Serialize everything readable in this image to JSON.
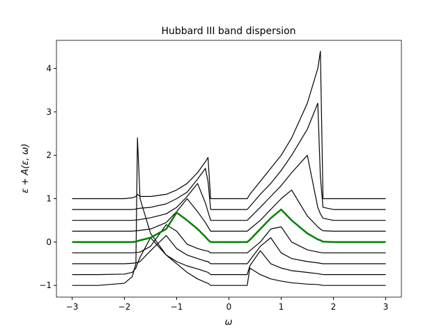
{
  "chart_data": {
    "type": "line",
    "title": "Hubbard III band dispersion",
    "xlabel": "ω",
    "ylabel": "ε + A(ε, ω)",
    "x": [
      -3,
      -2.5,
      -2,
      -1.85,
      -1.78,
      -1.75,
      -1.7,
      -1.5,
      -1.2,
      -1,
      -0.8,
      -0.6,
      -0.45,
      -0.4,
      -0.35,
      -0.2,
      0,
      0.2,
      0.35,
      0.4,
      0.6,
      0.8,
      1,
      1.2,
      1.5,
      1.7,
      1.75,
      1.8,
      2,
      2.5,
      3
    ],
    "series": [
      {
        "color": "#000000",
        "values": [
          -1,
          -1,
          -0.95,
          -0.8,
          -0.5,
          2.4,
          1.0,
          0.2,
          -0.3,
          -0.5,
          -0.7,
          -0.85,
          -0.93,
          -0.95,
          -1,
          -1,
          -1,
          -1,
          -1,
          -0.6,
          -0.75,
          -0.85,
          -0.9,
          -0.94,
          -0.97,
          -0.98,
          -0.99,
          -1,
          -1,
          -1,
          -1
        ]
      },
      {
        "color": "#000000",
        "values": [
          -0.75,
          -0.75,
          -0.74,
          -0.7,
          -0.6,
          -0.5,
          -0.35,
          0.1,
          -0.3,
          -0.45,
          -0.55,
          -0.62,
          -0.68,
          -0.7,
          -0.75,
          -0.75,
          -0.75,
          -0.75,
          -0.75,
          -0.55,
          -0.2,
          -0.5,
          -0.6,
          -0.66,
          -0.7,
          -0.73,
          -0.74,
          -0.75,
          -0.75,
          -0.75,
          -0.75
        ]
      },
      {
        "color": "#000000",
        "values": [
          -0.5,
          -0.5,
          -0.5,
          -0.49,
          -0.48,
          -0.47,
          -0.45,
          -0.2,
          0.15,
          -0.15,
          -0.3,
          -0.38,
          -0.44,
          -0.45,
          -0.5,
          -0.5,
          -0.5,
          -0.5,
          -0.5,
          -0.42,
          -0.1,
          0.1,
          -0.25,
          -0.38,
          -0.45,
          -0.48,
          -0.49,
          -0.5,
          -0.5,
          -0.5,
          -0.5
        ]
      },
      {
        "color": "#000000",
        "values": [
          -0.25,
          -0.25,
          -0.25,
          -0.25,
          -0.24,
          -0.24,
          -0.23,
          -0.1,
          0.4,
          0.25,
          -0.05,
          -0.15,
          -0.2,
          -0.21,
          -0.25,
          -0.25,
          -0.25,
          -0.25,
          -0.25,
          -0.2,
          0.0,
          0.3,
          0.35,
          0.0,
          -0.18,
          -0.23,
          -0.24,
          -0.25,
          -0.25,
          -0.25,
          -0.25
        ]
      },
      {
        "color": "#000000",
        "values": [
          0.25,
          0.25,
          0.25,
          0.25,
          0.26,
          0.26,
          0.27,
          0.3,
          0.45,
          0.7,
          1.0,
          0.7,
          0.45,
          0.35,
          0.25,
          0.25,
          0.25,
          0.25,
          0.25,
          0.3,
          0.5,
          0.75,
          1.0,
          1.2,
          0.6,
          0.35,
          0.3,
          0.26,
          0.25,
          0.25,
          0.25
        ]
      },
      {
        "color": "#000000",
        "values": [
          0.5,
          0.5,
          0.5,
          0.5,
          0.51,
          0.51,
          0.52,
          0.56,
          0.65,
          0.8,
          1.05,
          1.35,
          0.9,
          0.7,
          0.5,
          0.5,
          0.5,
          0.5,
          0.5,
          0.56,
          0.8,
          1.05,
          1.3,
          1.6,
          2.0,
          0.8,
          0.65,
          0.55,
          0.5,
          0.5,
          0.5
        ]
      },
      {
        "color": "#000000",
        "values": [
          0.75,
          0.75,
          0.75,
          0.75,
          0.76,
          0.77,
          0.78,
          0.8,
          0.88,
          1.0,
          1.15,
          1.45,
          1.7,
          1.4,
          0.75,
          0.75,
          0.75,
          0.75,
          0.75,
          0.82,
          1.1,
          1.35,
          1.65,
          2.0,
          2.6,
          3.2,
          1.5,
          0.8,
          0.75,
          0.75,
          0.75
        ]
      },
      {
        "color": "#000000",
        "values": [
          1,
          1,
          1,
          1.02,
          1.05,
          1.1,
          1.05,
          1.05,
          1.1,
          1.2,
          1.35,
          1.6,
          1.85,
          1.95,
          1.0,
          1,
          1,
          1,
          1,
          1.1,
          1.4,
          1.7,
          2.0,
          2.4,
          3.2,
          4.0,
          4.4,
          1.0,
          1,
          1,
          1
        ]
      },
      {
        "color": "#008000",
        "values": [
          0,
          0,
          0,
          0,
          0.01,
          0.02,
          0.04,
          0.1,
          0.3,
          0.68,
          0.5,
          0.3,
          0.12,
          0.05,
          0,
          0,
          0,
          0,
          0,
          0.05,
          0.3,
          0.55,
          0.75,
          0.5,
          0.2,
          0.06,
          0.04,
          0.01,
          0,
          0,
          0
        ]
      }
    ],
    "xlim": [
      -3.3,
      3.3
    ],
    "ylim": [
      -1.27,
      4.65
    ],
    "xticks": [
      {
        "value": -3,
        "label": "−3"
      },
      {
        "value": -2,
        "label": "−2"
      },
      {
        "value": -1,
        "label": "−1"
      },
      0,
      1,
      2,
      3
    ],
    "yticks": [
      {
        "value": -1,
        "label": "−1"
      },
      0,
      1,
      2,
      3,
      4
    ]
  }
}
